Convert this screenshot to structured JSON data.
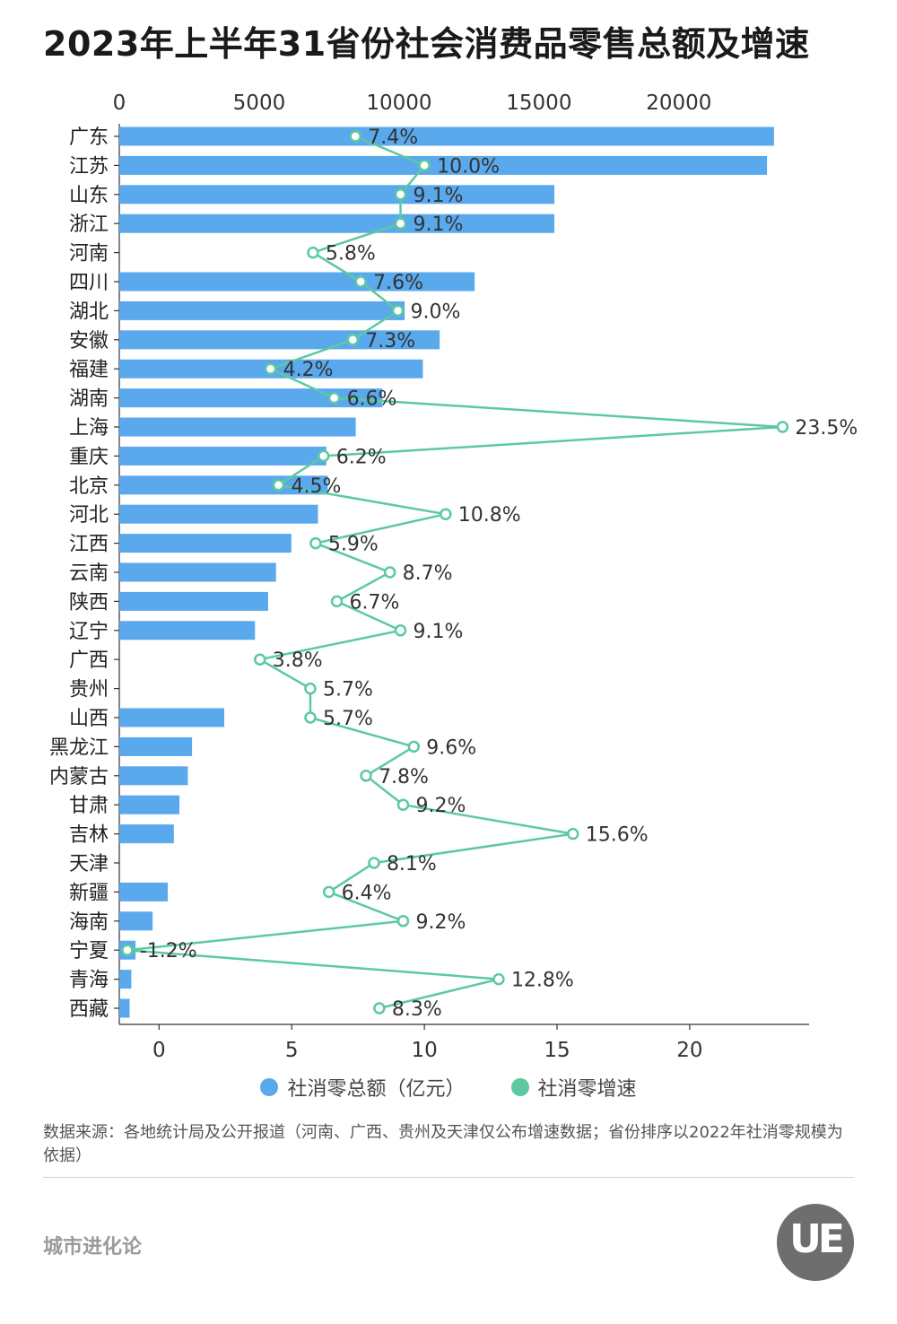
{
  "title": "2023年上半年31省份社会消费品零售总额及增速",
  "legend": {
    "total_label": "社消零总额（亿元）",
    "growth_label": "社消零增速"
  },
  "note": "数据来源：各地统计局及公开报道（河南、广西、贵州及天津仅公布增速数据；省份排序以2022年社消零规模为依据）",
  "brand": "城市进化论",
  "logo_text": "UE",
  "colors": {
    "bar": "#5aa9ec",
    "line": "#5cc9a0",
    "axis": "#333333"
  },
  "chart_data": {
    "type": "bar",
    "title": "2023年上半年31省份社会消费品零售总额及增速",
    "top_axis": {
      "ticks": [
        0,
        5000,
        10000,
        15000,
        20000
      ],
      "range": [
        0,
        23500
      ]
    },
    "bottom_axis": {
      "ticks": [
        0,
        5,
        10,
        15,
        20
      ],
      "range": [
        -1.5,
        24.5
      ]
    },
    "categories": [
      "广东",
      "江苏",
      "山东",
      "浙江",
      "河南",
      "四川",
      "湖北",
      "安徽",
      "福建",
      "湖南",
      "上海",
      "重庆",
      "北京",
      "河北",
      "江西",
      "云南",
      "陕西",
      "辽宁",
      "广西",
      "贵州",
      "山西",
      "黑龙江",
      "内蒙古",
      "甘肃",
      "吉林",
      "天津",
      "新疆",
      "海南",
      "宁夏",
      "青海",
      "西藏"
    ],
    "series": [
      {
        "name": "社消零总额（亿元）",
        "type": "bar",
        "values": [
          23400,
          23150,
          15550,
          15550,
          null,
          12700,
          10200,
          11450,
          10850,
          9400,
          8450,
          7400,
          7450,
          7100,
          6150,
          5600,
          5320,
          4850,
          null,
          null,
          3750,
          2600,
          2450,
          2150,
          1950,
          null,
          1730,
          1190,
          580,
          430,
          370
        ]
      },
      {
        "name": "社消零增速",
        "type": "line",
        "values": [
          7.4,
          10.0,
          9.1,
          9.1,
          5.8,
          7.6,
          9.0,
          7.3,
          4.2,
          6.6,
          23.5,
          6.2,
          4.5,
          10.8,
          5.9,
          8.7,
          6.7,
          9.1,
          3.8,
          5.7,
          5.7,
          9.6,
          7.8,
          9.2,
          15.6,
          8.1,
          6.4,
          9.2,
          -1.2,
          12.8,
          8.3
        ],
        "labels": [
          "7.4%",
          "10.0%",
          "9.1%",
          "9.1%",
          "5.8%",
          "7.6%",
          "9.0%",
          "7.3%",
          "4.2%",
          "6.6%",
          "23.5%",
          "6.2%",
          "4.5%",
          "10.8%",
          "5.9%",
          "8.7%",
          "6.7%",
          "9.1%",
          "3.8%",
          "5.7%",
          "5.7%",
          "9.6%",
          "7.8%",
          "9.2%",
          "15.6%",
          "8.1%",
          "6.4%",
          "9.2%",
          "-1.2%",
          "12.8%",
          "8.3%"
        ]
      }
    ],
    "grid": false,
    "legend_position": "bottom"
  }
}
